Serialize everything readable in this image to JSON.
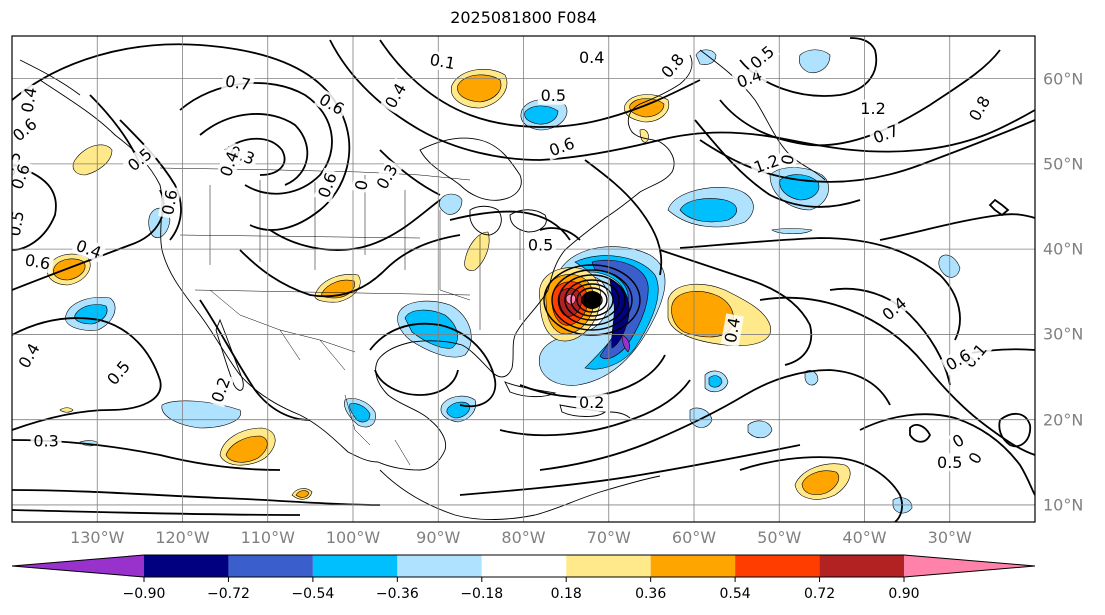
{
  "title": "2025081800 F084",
  "lon_labels": [
    "130°W",
    "120°W",
    "110°W",
    "100°W",
    "90°W",
    "80°W",
    "70°W",
    "60°W",
    "50°W",
    "40°W",
    "30°W"
  ],
  "lat_labels": [
    "60°N",
    "50°N",
    "40°N",
    "30°N",
    "20°N",
    "10°N"
  ],
  "colorbar": {
    "ticks": [
      "−0.90",
      "−0.72",
      "−0.54",
      "−0.36",
      "−0.18",
      "0.18",
      "0.36",
      "0.54",
      "0.72",
      "0.90"
    ],
    "colors": [
      "#9932cc",
      "#000080",
      "#3a5fcd",
      "#00bfff",
      "#afe2ff",
      "#ffffff",
      "#ffe98a",
      "#ffa500",
      "#ff3d00",
      "#b22222",
      "#ff82ab"
    ]
  },
  "contour_labels": [
    {
      "text": "0.7",
      "lon": -113.5,
      "lat": 59.5,
      "rot": 10
    },
    {
      "text": "0.6",
      "lon": -102.5,
      "lat": 57,
      "rot": 30
    },
    {
      "text": "0.4",
      "lon": -95,
      "lat": 58,
      "rot": -60
    },
    {
      "text": "0.1",
      "lon": -89.5,
      "lat": 62,
      "rot": 10
    },
    {
      "text": "0.4",
      "lon": -72,
      "lat": 62.5,
      "rot": 0
    },
    {
      "text": "0.5",
      "lon": -76.5,
      "lat": 58,
      "rot": 0
    },
    {
      "text": "0.6",
      "lon": -75.5,
      "lat": 52,
      "rot": -20
    },
    {
      "text": "0.8",
      "lon": -62.5,
      "lat": 61.5,
      "rot": -50
    },
    {
      "text": "0.4",
      "lon": -53.5,
      "lat": 60,
      "rot": -20
    },
    {
      "text": "0.5",
      "lon": -52,
      "lat": 62.5,
      "rot": -40
    },
    {
      "text": "1.2",
      "lon": -39,
      "lat": 56.5,
      "rot": 0
    },
    {
      "text": "0.7",
      "lon": -37.5,
      "lat": 53.5,
      "rot": -20
    },
    {
      "text": "0.8",
      "lon": -26.5,
      "lat": 56.5,
      "rot": -60
    },
    {
      "text": "1.2",
      "lon": -51.5,
      "lat": 50,
      "rot": -20
    },
    {
      "text": "0",
      "lon": -49,
      "lat": 50.5,
      "rot": -80
    },
    {
      "text": "0.3",
      "lon": -113,
      "lat": 51,
      "rot": 20
    },
    {
      "text": "0.4",
      "lon": -114.5,
      "lat": 50,
      "rot": -70
    },
    {
      "text": "0.6",
      "lon": -103,
      "lat": 47.5,
      "rot": -70
    },
    {
      "text": "0",
      "lon": -99,
      "lat": 47.5,
      "rot": -80
    },
    {
      "text": "0.3",
      "lon": -96,
      "lat": 48.5,
      "rot": -60
    },
    {
      "text": "0.5",
      "lon": -125,
      "lat": 50.5,
      "rot": -40
    },
    {
      "text": "0.4",
      "lon": -138,
      "lat": 57.5,
      "rot": -80
    },
    {
      "text": "0.6",
      "lon": -138.5,
      "lat": 54,
      "rot": -40
    },
    {
      "text": "0.5",
      "lon": -140,
      "lat": 50,
      "rot": -70
    },
    {
      "text": "0.6",
      "lon": -139,
      "lat": 48.5,
      "rot": -70
    },
    {
      "text": "0.5",
      "lon": -139.5,
      "lat": 43,
      "rot": -80
    },
    {
      "text": "0.6",
      "lon": -137,
      "lat": 38.5,
      "rot": 10
    },
    {
      "text": "0.4",
      "lon": -131,
      "lat": 40,
      "rot": 20
    },
    {
      "text": "0.6",
      "lon": -121.5,
      "lat": 45.5,
      "rot": -80
    },
    {
      "text": "0.5",
      "lon": -78,
      "lat": 40.5,
      "rot": 0
    },
    {
      "text": "0.4",
      "lon": -55.5,
      "lat": 30.5,
      "rot": -80
    },
    {
      "text": "0.4",
      "lon": -36.5,
      "lat": 33,
      "rot": -40
    },
    {
      "text": "0.1",
      "lon": -27,
      "lat": 27.5,
      "rot": -50
    },
    {
      "text": "0.6",
      "lon": -29,
      "lat": 27,
      "rot": -30
    },
    {
      "text": "0.4",
      "lon": -138,
      "lat": 27.5,
      "rot": -60
    },
    {
      "text": "0.5",
      "lon": -127.5,
      "lat": 25.5,
      "rot": -50
    },
    {
      "text": "0.2",
      "lon": -115.5,
      "lat": 23.5,
      "rot": -70
    },
    {
      "text": "0.3",
      "lon": -136,
      "lat": 17.5,
      "rot": 0
    },
    {
      "text": "0.2",
      "lon": -72,
      "lat": 22,
      "rot": 0
    },
    {
      "text": "0.5",
      "lon": -30,
      "lat": 15,
      "rot": 0
    },
    {
      "text": "0",
      "lon": -27,
      "lat": 15.5,
      "rot": -60
    },
    {
      "text": "0",
      "lon": -29,
      "lat": 17.5,
      "rot": -30
    }
  ]
}
